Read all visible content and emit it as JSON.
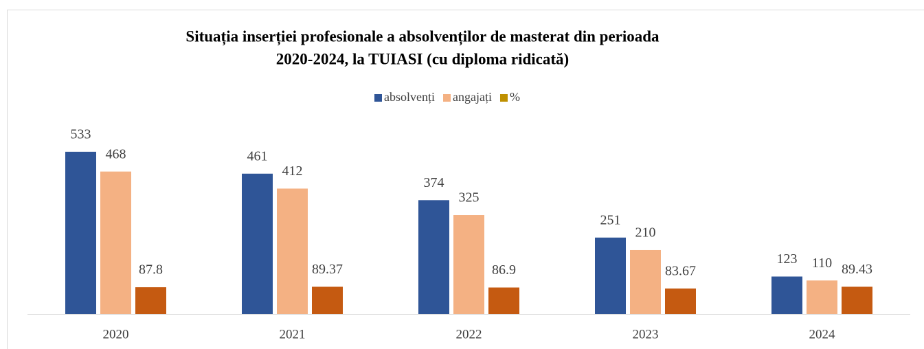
{
  "chart_data": {
    "type": "bar",
    "title": [
      "Situația inserției profesionale a absolvenților de masterat din perioada",
      "2020-2024, la TUIASI    (cu diploma ridicată)"
    ],
    "categories": [
      "2020",
      "2021",
      "2022",
      "2023",
      "2024"
    ],
    "series": [
      {
        "name": "absolvenți",
        "color": "#2f5597",
        "values": [
          533,
          461,
          374,
          251,
          123
        ]
      },
      {
        "name": "angajați",
        "color": "#f4b183",
        "values": [
          468,
          412,
          325,
          210,
          110
        ]
      },
      {
        "name": "%",
        "color": "#c55a11",
        "legend_color": "#bf9000",
        "values": [
          87.8,
          89.37,
          86.9,
          83.67,
          89.43
        ]
      }
    ],
    "ylim": [
      0,
      600
    ],
    "legend": "top",
    "data_labels": true
  }
}
